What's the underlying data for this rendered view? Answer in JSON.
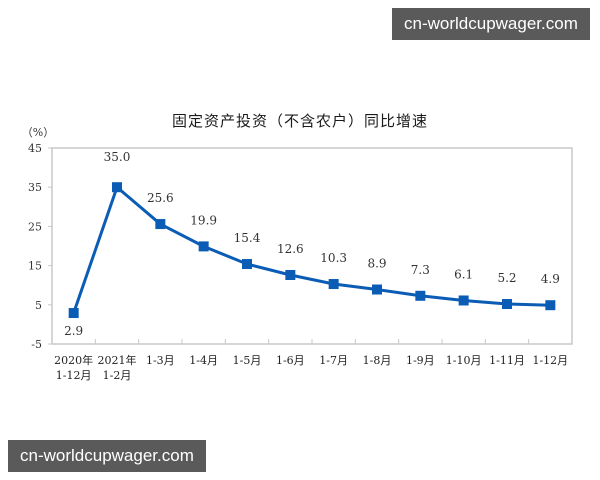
{
  "watermarks": {
    "top": "cn-worldcupwager.com",
    "bottom": "cn-worldcupwager.com"
  },
  "chart_data": {
    "type": "line",
    "title": "固定资产投资（不含农户）同比增速",
    "ylabel": "（%）",
    "xlabel": "",
    "ylim": [
      -5,
      45
    ],
    "yticks": [
      -5,
      5,
      15,
      25,
      35,
      45
    ],
    "grid": false,
    "legend": null,
    "categories": [
      [
        "2020年",
        "1-12月"
      ],
      [
        "2021年",
        "1-2月"
      ],
      [
        "1-3月"
      ],
      [
        "1-4月"
      ],
      [
        "1-5月"
      ],
      [
        "1-6月"
      ],
      [
        "1-7月"
      ],
      [
        "1-8月"
      ],
      [
        "1-9月"
      ],
      [
        "1-10月"
      ],
      [
        "1-11月"
      ],
      [
        "1-12月"
      ]
    ],
    "series": [
      {
        "name": "固定资产投资（不含农户）同比增速",
        "color": "#0b5cb5",
        "marker": "square",
        "values": [
          2.9,
          35.0,
          25.6,
          19.9,
          15.4,
          12.6,
          10.3,
          8.9,
          7.3,
          6.1,
          5.2,
          4.9
        ],
        "labels": [
          "2.9",
          "35.0",
          "25.6",
          "19.9",
          "15.4",
          "12.6",
          "10.3",
          "8.9",
          "7.3",
          "6.1",
          "5.2",
          "4.9"
        ]
      }
    ]
  },
  "colors": {
    "line": "#0b5cb5",
    "axis": "#c8c8c8",
    "watermark_bg": "#5a5a5a"
  }
}
